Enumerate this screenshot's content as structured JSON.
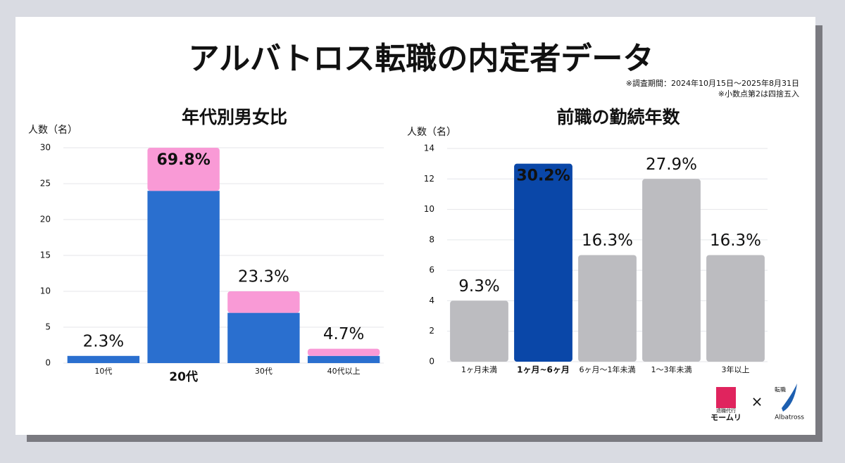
{
  "header": {
    "title": "アルバトロス転職の内定者データ",
    "notes": [
      "※調査期間：2024年10月15日～2025年8月31日",
      "※小数点第2は四捨五入"
    ]
  },
  "chart_data": [
    {
      "type": "stacked_bar",
      "title": "年代別男女比",
      "y_label": "人数（名）",
      "categories": [
        "10代",
        "20代",
        "30代",
        "40代以上"
      ],
      "series": [
        {
          "color": "#2a6fcf",
          "values": [
            1,
            24,
            7,
            1
          ]
        },
        {
          "color": "#f99ad6",
          "values": [
            0,
            6,
            3,
            1
          ]
        }
      ],
      "annotations": [
        "2.3%",
        "69.8%",
        "23.3%",
        "4.7%"
      ],
      "highlight": 1,
      "ylim": [
        0,
        30
      ],
      "yticks": [
        0,
        5,
        10,
        15,
        20,
        25,
        30
      ],
      "grid": true
    },
    {
      "type": "bar",
      "title": "前職の勤続年数",
      "y_label": "人数（名）",
      "categories": [
        "1ヶ月未満",
        "1ヶ月~6ヶ月",
        "6ヶ月〜1年未満",
        "1〜3年未満",
        "3年以上"
      ],
      "values": [
        4,
        13,
        7,
        12,
        7
      ],
      "colors": [
        "#bcbcc0",
        "#0a47a8",
        "#bcbcc0",
        "#bcbcc0",
        "#bcbcc0"
      ],
      "annotations": [
        "9.3%",
        "30.2%",
        "16.3%",
        "27.9%",
        "16.3%"
      ],
      "highlight": 1,
      "ylim": [
        0,
        14
      ],
      "yticks": [
        0,
        2,
        4,
        6,
        8,
        10,
        12,
        14
      ],
      "grid": true
    }
  ],
  "footer": {
    "logo1": [
      "退職代行",
      "モームリ"
    ],
    "times": "×",
    "logo2": [
      "転職",
      "Albatross"
    ]
  }
}
